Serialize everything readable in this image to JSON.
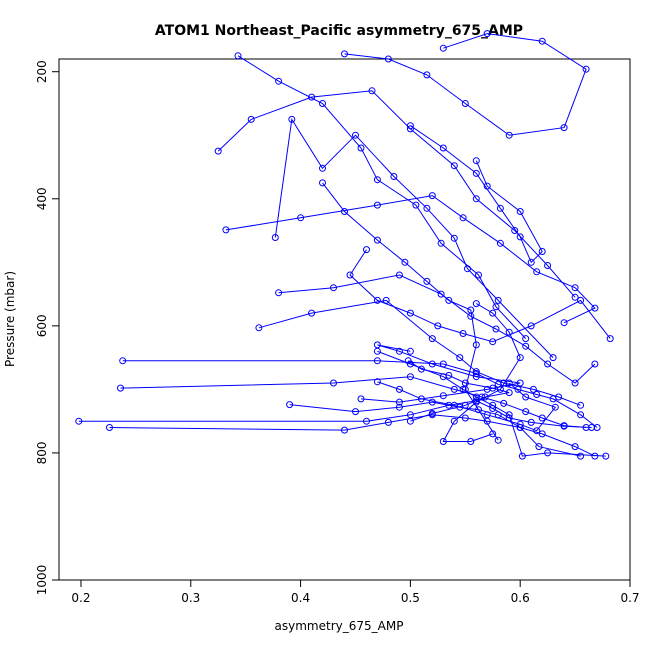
{
  "chart_data": {
    "type": "line",
    "title": "ATOM1 Northeast_Pacific asymmetry_675_AMP",
    "xlabel": "asymmetry_675_AMP",
    "ylabel": "Pressure (mbar)",
    "xlim": [
      0.18,
      0.7
    ],
    "ylim": [
      1000,
      180
    ],
    "y_reversed": true,
    "x_ticks": [
      "0.2",
      "0.3",
      "0.4",
      "0.5",
      "0.6",
      "0.7"
    ],
    "y_ticks": [
      "200",
      "400",
      "600",
      "800",
      "1000"
    ],
    "grid": false,
    "legend": "none",
    "colors": {
      "series": "#0000ff",
      "axis": "#000000"
    },
    "series": [
      {
        "x": [
          0.343,
          0.38,
          0.42,
          0.455,
          0.47,
          0.505,
          0.528,
          0.562,
          0.578,
          0.605
        ],
        "y": [
          175,
          215,
          250,
          320,
          370,
          410,
          470,
          520,
          570,
          620
        ]
      },
      {
        "x": [
          0.377,
          0.392,
          0.42,
          0.45,
          0.485,
          0.515,
          0.54,
          0.552,
          0.58,
          0.63
        ],
        "y": [
          461,
          275,
          352,
          300,
          365,
          415,
          462,
          510,
          560,
          650
        ]
      },
      {
        "x": [
          0.325,
          0.355,
          0.41,
          0.465,
          0.5,
          0.54,
          0.56,
          0.595,
          0.625,
          0.65
        ],
        "y": [
          325,
          275,
          240,
          230,
          290,
          348,
          400,
          450,
          505,
          555
        ]
      },
      {
        "x": [
          0.44,
          0.48,
          0.515,
          0.55,
          0.59,
          0.64,
          0.66,
          0.62,
          0.57,
          0.53
        ],
        "y": [
          172,
          180,
          205,
          250,
          300,
          288,
          196,
          152,
          140,
          163
        ]
      },
      {
        "x": [
          0.46,
          0.445,
          0.47,
          0.5,
          0.525,
          0.548,
          0.575,
          0.61,
          0.655,
          0.682
        ],
        "y": [
          480,
          520,
          560,
          580,
          600,
          612,
          625,
          600,
          560,
          620
        ]
      },
      {
        "x": [
          0.332,
          0.4,
          0.47,
          0.52,
          0.548,
          0.582,
          0.615,
          0.65,
          0.668,
          0.64
        ],
        "y": [
          449,
          430,
          410,
          395,
          430,
          470,
          515,
          540,
          572,
          595
        ]
      },
      {
        "x": [
          0.38,
          0.43,
          0.49,
          0.528,
          0.555,
          0.578,
          0.605,
          0.625,
          0.65,
          0.668
        ],
        "y": [
          548,
          540,
          520,
          550,
          585,
          605,
          632,
          660,
          690,
          660
        ]
      },
      {
        "x": [
          0.362,
          0.41,
          0.478,
          0.52,
          0.545,
          0.56,
          0.585,
          0.612,
          0.635,
          0.655
        ],
        "y": [
          603,
          580,
          560,
          620,
          650,
          672,
          690,
          700,
          712,
          725
        ]
      },
      {
        "x": [
          0.238,
          0.47,
          0.53,
          0.56,
          0.58,
          0.598,
          0.615,
          0.63,
          0.655,
          0.67
        ],
        "y": [
          655,
          655,
          660,
          675,
          692,
          700,
          708,
          715,
          740,
          760
        ]
      },
      {
        "x": [
          0.236,
          0.43,
          0.5,
          0.54,
          0.565,
          0.585,
          0.605,
          0.62,
          0.64,
          0.66
        ],
        "y": [
          698,
          690,
          680,
          700,
          712,
          722,
          735,
          745,
          757,
          760
        ]
      },
      {
        "x": [
          0.198,
          0.46,
          0.5,
          0.535,
          0.56,
          0.575,
          0.59,
          0.61,
          0.64,
          0.665
        ],
        "y": [
          750,
          750,
          740,
          725,
          718,
          730,
          745,
          752,
          758,
          760
        ]
      },
      {
        "x": [
          0.226,
          0.44,
          0.48,
          0.52,
          0.55,
          0.57,
          0.6,
          0.62,
          0.65,
          0.668
        ],
        "y": [
          760,
          764,
          752,
          740,
          745,
          750,
          760,
          770,
          790,
          805
        ]
      },
      {
        "x": [
          0.39,
          0.45,
          0.49,
          0.52,
          0.545,
          0.562,
          0.58,
          0.6,
          0.617,
          0.655
        ],
        "y": [
          724,
          735,
          728,
          720,
          728,
          732,
          740,
          760,
          790,
          805
        ]
      },
      {
        "x": [
          0.47,
          0.5,
          0.53,
          0.548,
          0.56,
          0.575,
          0.59,
          0.602,
          0.625,
          0.678
        ],
        "y": [
          640,
          660,
          680,
          700,
          712,
          725,
          740,
          805,
          800,
          805
        ]
      },
      {
        "x": [
          0.5,
          0.53,
          0.56,
          0.582,
          0.6,
          0.61,
          0.62,
          0.6,
          0.57,
          0.56
        ],
        "y": [
          285,
          320,
          360,
          415,
          460,
          500,
          483,
          420,
          380,
          340
        ]
      },
      {
        "x": [
          0.42,
          0.44,
          0.47,
          0.495,
          0.515,
          0.535,
          0.555,
          0.56,
          0.55,
          0.58
        ],
        "y": [
          375,
          420,
          465,
          500,
          530,
          560,
          575,
          630,
          700,
          780
        ]
      },
      {
        "x": [
          0.56,
          0.575,
          0.59,
          0.6,
          0.582,
          0.56,
          0.54,
          0.53,
          0.555,
          0.575
        ],
        "y": [
          565,
          580,
          610,
          650,
          700,
          720,
          750,
          782,
          782,
          770
        ]
      },
      {
        "x": [
          0.498,
          0.51,
          0.535,
          0.55,
          0.575,
          0.59,
          0.568,
          0.55,
          0.52,
          0.5
        ],
        "y": [
          655,
          668,
          678,
          690,
          698,
          705,
          712,
          725,
          738,
          750
        ]
      },
      {
        "x": [
          0.47,
          0.49,
          0.51,
          0.54,
          0.57,
          0.6,
          0.615,
          0.632,
          0.605,
          0.59
        ],
        "y": [
          688,
          700,
          715,
          725,
          740,
          755,
          765,
          728,
          712,
          690
        ]
      },
      {
        "x": [
          0.455,
          0.49,
          0.53,
          0.57,
          0.6,
          0.56,
          0.52,
          0.49,
          0.47,
          0.5
        ],
        "y": [
          715,
          720,
          710,
          700,
          690,
          680,
          660,
          640,
          630,
          640
        ]
      }
    ]
  }
}
